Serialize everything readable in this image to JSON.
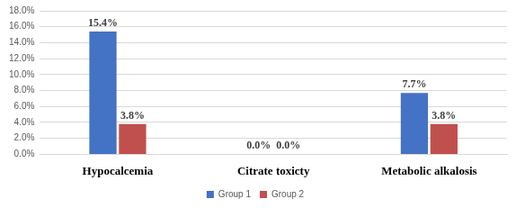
{
  "chart_data": {
    "type": "bar",
    "categories": [
      "Hypocalcemia",
      "Citrate toxicty",
      "Metabolic alkalosis"
    ],
    "series": [
      {
        "name": "Group 1",
        "color": "#4472c4",
        "values": [
          15.4,
          0.0,
          7.7
        ],
        "value_labels": [
          "15.4%",
          "0.0%",
          "7.7%"
        ]
      },
      {
        "name": "Group 2",
        "color": "#c0504d",
        "values": [
          3.8,
          0.0,
          3.8
        ],
        "value_labels": [
          "3.8%",
          "0.0%",
          "3.8%"
        ]
      }
    ],
    "ylim": [
      0,
      18
    ],
    "yticks": [
      {
        "value": 0,
        "label": "0.0%"
      },
      {
        "value": 2,
        "label": "2.0%"
      },
      {
        "value": 4,
        "label": "4.0%"
      },
      {
        "value": 6,
        "label": "6.0%"
      },
      {
        "value": 8,
        "label": "8.0%"
      },
      {
        "value": 10,
        "label": "10.0%"
      },
      {
        "value": 12,
        "label": "12.0%"
      },
      {
        "value": 14,
        "label": "14.0%"
      },
      {
        "value": 16,
        "label": "16.0%"
      },
      {
        "value": 18,
        "label": "18.0%"
      }
    ],
    "grid": true,
    "legend": "bottom",
    "data_labels": true
  }
}
